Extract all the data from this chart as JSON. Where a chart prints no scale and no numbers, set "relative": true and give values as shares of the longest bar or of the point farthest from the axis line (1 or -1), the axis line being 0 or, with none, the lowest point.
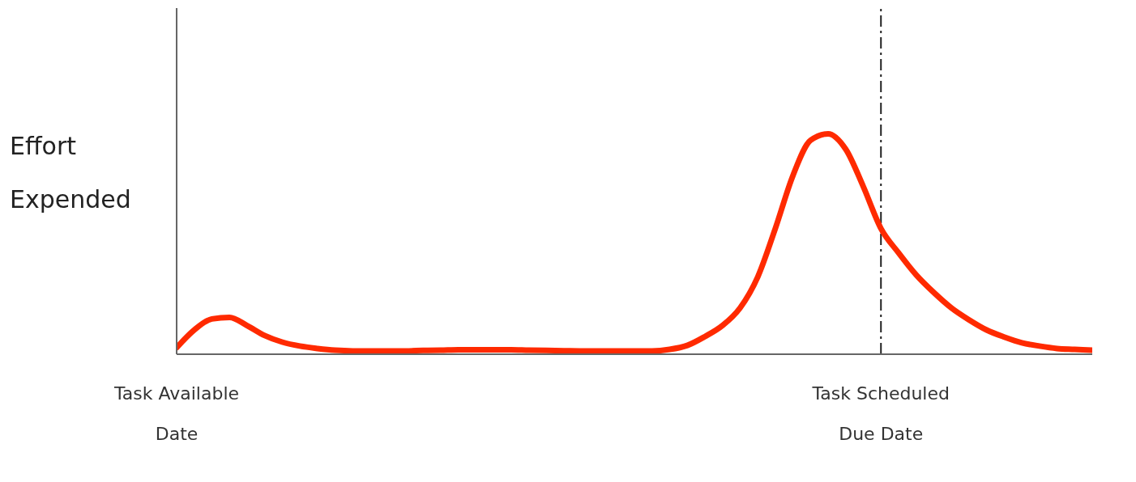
{
  "chart_data": {
    "type": "line",
    "relative": true,
    "ylabel": "Effort Expended",
    "categories": [
      "Task Available Date",
      null,
      null,
      null,
      null,
      null,
      null,
      null,
      null,
      null,
      null,
      null,
      null,
      null,
      null,
      null,
      null,
      null,
      null,
      null,
      null,
      null,
      null,
      null,
      null,
      null,
      null,
      null,
      null,
      null,
      null,
      null,
      null,
      null,
      null,
      null,
      null,
      null,
      null,
      null,
      "Task Scheduled Due Date",
      null,
      null,
      null,
      null,
      null,
      null,
      null,
      null,
      null,
      null,
      null,
      null
    ],
    "series": [
      {
        "color": "#ff2a00",
        "values": [
          0.03,
          0.11,
          0.16,
          0.167,
          0.13,
          0.085,
          0.055,
          0.037,
          0.026,
          0.018,
          0.015,
          0.015,
          0.015,
          0.015,
          0.017,
          0.018,
          0.02,
          0.02,
          0.02,
          0.02,
          0.018,
          0.017,
          0.016,
          0.015,
          0.015,
          0.015,
          0.015,
          0.015,
          0.022,
          0.04,
          0.08,
          0.13,
          0.21,
          0.35,
          0.57,
          0.81,
          0.97,
          1,
          0.93,
          0.76,
          0.57,
          0.46,
          0.36,
          0.28,
          0.21,
          0.156,
          0.11,
          0.078,
          0.052,
          0.037,
          0.026,
          0.022,
          0.018
        ]
      }
    ],
    "ref_lines": [
      {
        "axis": "x",
        "value": "Task Scheduled Due Date",
        "color": "#222222",
        "line_style": "dashed"
      }
    ]
  }
}
